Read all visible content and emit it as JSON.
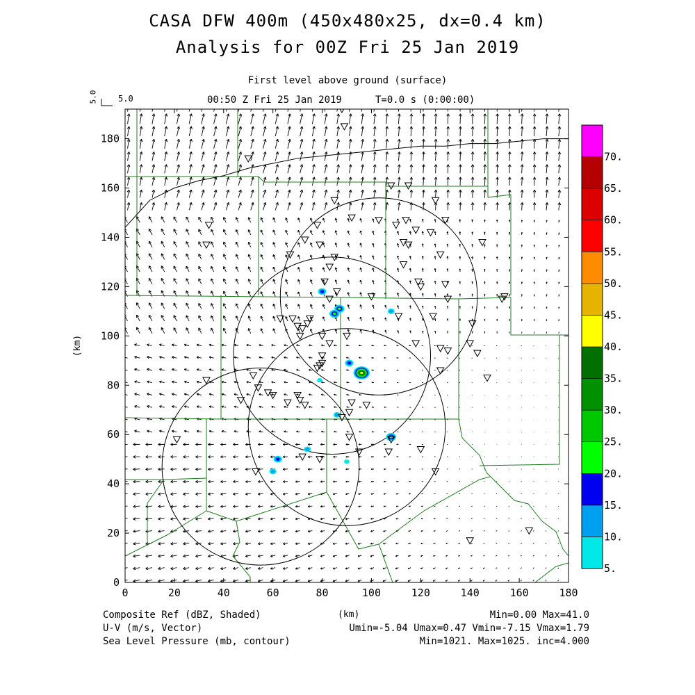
{
  "header": {
    "title_line1": "CASA DFW 400m (450x480x25, dx=0.4 km)",
    "title_line2": "Analysis for 00Z Fri 25 Jan 2019",
    "level": "First level above ground (surface)",
    "valid_time": "00:50 Z Fri 25 Jan 2019",
    "model_time": "T=0.0 s (0:00:00)",
    "vector_key_value": "5.0",
    "vector_key_label": "5.0"
  },
  "axes": {
    "xlabel": "(km)",
    "ylabel": "(km)",
    "x_ticks": [
      "0",
      "20",
      "40",
      "60",
      "80",
      "100",
      "120",
      "140",
      "160",
      "180"
    ],
    "y_ticks": [
      "0",
      "20",
      "40",
      "60",
      "80",
      "100",
      "120",
      "140",
      "160",
      "180"
    ],
    "xlim": [
      0,
      180
    ],
    "ylim": [
      0,
      192
    ]
  },
  "colorbar": {
    "labels": [
      "5.",
      "10.",
      "15.",
      "20.",
      "25.",
      "30.",
      "35.",
      "40.",
      "45.",
      "50.",
      "55.",
      "60.",
      "65.",
      "70."
    ],
    "colors": [
      "#00e8e8",
      "#00a0f0",
      "#0000f0",
      "#00ff00",
      "#00c800",
      "#009000",
      "#007000",
      "#ffff00",
      "#e6b400",
      "#ff8c00",
      "#ff0000",
      "#dc0000",
      "#b40000",
      "#ff00ff"
    ]
  },
  "footer": {
    "field1_label": "Composite Ref (dBZ, Shaded)",
    "field1_stats": "Min=0.00 Max=41.0",
    "field2_label": "U-V (m/s, Vector)",
    "field2_stats": "Umin=-5.04 Umax=0.47 Vmin=-7.15 Vmax=1.79",
    "field3_label": "Sea Level Pressure (mb, contour)",
    "field3_stats": "Min=1021. Max=1025. inc=4.000",
    "xunit": "(km)"
  },
  "map_data": {
    "radar_rings": [
      {
        "x": 103,
        "y": 116,
        "r": 40
      },
      {
        "x": 84,
        "y": 92,
        "r": 40
      },
      {
        "x": 90,
        "y": 63,
        "r": 40
      },
      {
        "x": 55,
        "y": 47,
        "r": 40
      }
    ],
    "stations": [
      [
        50,
        172
      ],
      [
        88,
        192
      ],
      [
        89,
        185
      ],
      [
        34,
        145
      ],
      [
        33,
        137
      ],
      [
        67,
        133
      ],
      [
        85,
        155
      ],
      [
        78,
        145
      ],
      [
        73,
        139
      ],
      [
        79,
        137
      ],
      [
        92,
        148
      ],
      [
        103,
        147
      ],
      [
        108,
        161
      ],
      [
        115,
        161
      ],
      [
        110,
        145
      ],
      [
        114,
        147
      ],
      [
        118,
        143
      ],
      [
        124,
        142
      ],
      [
        126,
        155
      ],
      [
        130,
        147
      ],
      [
        128,
        133
      ],
      [
        113,
        138
      ],
      [
        115,
        137
      ],
      [
        113,
        129
      ],
      [
        119,
        122
      ],
      [
        120,
        120
      ],
      [
        130,
        121
      ],
      [
        145,
        138
      ],
      [
        85,
        132
      ],
      [
        83,
        128
      ],
      [
        81,
        122
      ],
      [
        86,
        118
      ],
      [
        83,
        115
      ],
      [
        100,
        116
      ],
      [
        111,
        108
      ],
      [
        125,
        108
      ],
      [
        131,
        115
      ],
      [
        141,
        105
      ],
      [
        154,
        116
      ],
      [
        153,
        115
      ],
      [
        63,
        107
      ],
      [
        68,
        107
      ],
      [
        70,
        104
      ],
      [
        72,
        103
      ],
      [
        74,
        105
      ],
      [
        75,
        107
      ],
      [
        71,
        100
      ],
      [
        80,
        100
      ],
      [
        83,
        97
      ],
      [
        90,
        100
      ],
      [
        80,
        92
      ],
      [
        79,
        88
      ],
      [
        78,
        87
      ],
      [
        80,
        89
      ],
      [
        52,
        84
      ],
      [
        47,
        74
      ],
      [
        60,
        76
      ],
      [
        66,
        73
      ],
      [
        70,
        76
      ],
      [
        71,
        74
      ],
      [
        73,
        72
      ],
      [
        58,
        77
      ],
      [
        88,
        67
      ],
      [
        91,
        69
      ],
      [
        92,
        73
      ],
      [
        98,
        72
      ],
      [
        118,
        97
      ],
      [
        128,
        95
      ],
      [
        131,
        94
      ],
      [
        140,
        97
      ],
      [
        143,
        93
      ],
      [
        147,
        83
      ],
      [
        128,
        86
      ],
      [
        54,
        79
      ],
      [
        33,
        82
      ],
      [
        21,
        58
      ],
      [
        72,
        51
      ],
      [
        79,
        50
      ],
      [
        91,
        59
      ],
      [
        95,
        53
      ],
      [
        107,
        53
      ],
      [
        108,
        58
      ],
      [
        120,
        54
      ],
      [
        126,
        45
      ],
      [
        53,
        45
      ],
      [
        140,
        17
      ],
      [
        164,
        21
      ]
    ],
    "echoes": [
      {
        "x": 80,
        "y": 118,
        "max": 15
      },
      {
        "x": 87,
        "y": 111,
        "max": 20
      },
      {
        "x": 85,
        "y": 109,
        "max": 20
      },
      {
        "x": 108,
        "y": 110,
        "max": 10
      },
      {
        "x": 91,
        "y": 89,
        "max": 15
      },
      {
        "x": 96,
        "y": 85,
        "max": 41
      },
      {
        "x": 79,
        "y": 82,
        "max": 5
      },
      {
        "x": 86,
        "y": 68,
        "max": 10
      },
      {
        "x": 108,
        "y": 59,
        "max": 20
      },
      {
        "x": 62,
        "y": 50,
        "max": 15
      },
      {
        "x": 60,
        "y": 45,
        "max": 10
      },
      {
        "x": 74,
        "y": 54,
        "max": 10
      },
      {
        "x": 90,
        "y": 49,
        "max": 5
      }
    ],
    "pressure_contour": {
      "value_mb": 1024,
      "points": [
        [
          0,
          144
        ],
        [
          10,
          155
        ],
        [
          20,
          160
        ],
        [
          30,
          163
        ],
        [
          40,
          165
        ],
        [
          50,
          168
        ],
        [
          60,
          170
        ],
        [
          70,
          172
        ],
        [
          80,
          173
        ],
        [
          90,
          174
        ],
        [
          100,
          175
        ],
        [
          110,
          176
        ],
        [
          120,
          177
        ],
        [
          130,
          177
        ],
        [
          140,
          178
        ],
        [
          150,
          178
        ],
        [
          160,
          179
        ],
        [
          170,
          180
        ],
        [
          180,
          180
        ]
      ]
    }
  }
}
